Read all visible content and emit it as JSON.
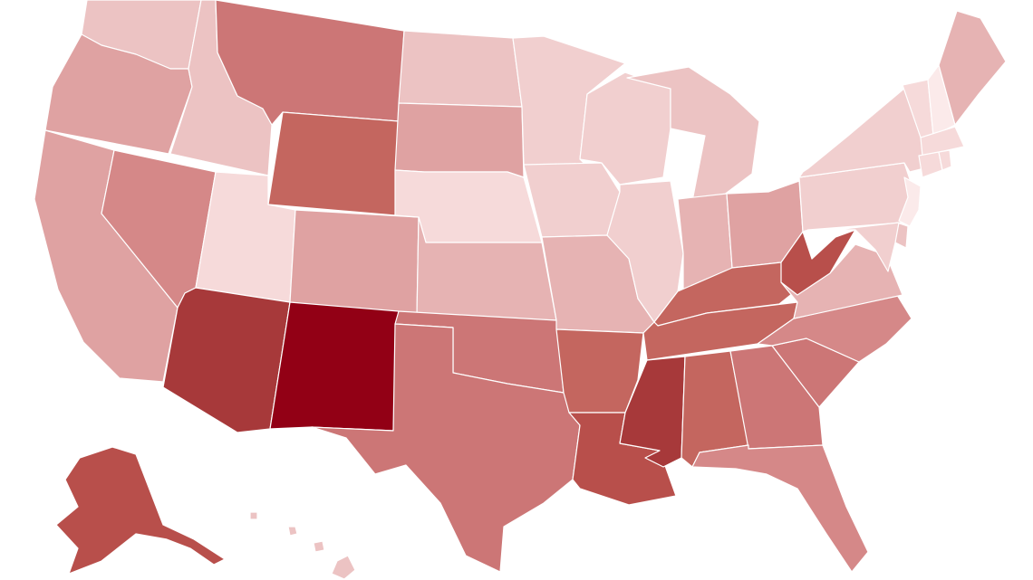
{
  "map": {
    "type": "choropleth",
    "region": "United States",
    "colors": {
      "background": "#ffffff",
      "border": "#ffffff",
      "scale": [
        "#fbeaea",
        "#f6dada",
        "#f1cfcf",
        "#ecc3c3",
        "#e6b3b3",
        "#dfa2a2",
        "#d58888",
        "#cc7676",
        "#c4665f",
        "#b84f4b",
        "#a7393a",
        "#920015"
      ]
    },
    "states": [
      {
        "code": "WA",
        "level": 3
      },
      {
        "code": "OR",
        "level": 5
      },
      {
        "code": "CA",
        "level": 5
      },
      {
        "code": "ID",
        "level": 3
      },
      {
        "code": "NV",
        "level": 6
      },
      {
        "code": "UT",
        "level": 1
      },
      {
        "code": "AZ",
        "level": 10
      },
      {
        "code": "MT",
        "level": 7
      },
      {
        "code": "WY",
        "level": 8
      },
      {
        "code": "CO",
        "level": 5
      },
      {
        "code": "NM",
        "level": 11
      },
      {
        "code": "ND",
        "level": 3
      },
      {
        "code": "SD",
        "level": 5
      },
      {
        "code": "NE",
        "level": 1
      },
      {
        "code": "KS",
        "level": 4
      },
      {
        "code": "OK",
        "level": 7
      },
      {
        "code": "TX",
        "level": 7
      },
      {
        "code": "MN",
        "level": 2
      },
      {
        "code": "IA",
        "level": 2
      },
      {
        "code": "MO",
        "level": 4
      },
      {
        "code": "AR",
        "level": 8
      },
      {
        "code": "LA",
        "level": 9
      },
      {
        "code": "WI",
        "level": 2
      },
      {
        "code": "IL",
        "level": 2
      },
      {
        "code": "MI",
        "level": 3
      },
      {
        "code": "IN",
        "level": 4
      },
      {
        "code": "OH",
        "level": 5
      },
      {
        "code": "KY",
        "level": 8
      },
      {
        "code": "TN",
        "level": 8
      },
      {
        "code": "MS",
        "level": 10
      },
      {
        "code": "AL",
        "level": 8
      },
      {
        "code": "GA",
        "level": 7
      },
      {
        "code": "FL",
        "level": 6
      },
      {
        "code": "SC",
        "level": 7
      },
      {
        "code": "NC",
        "level": 6
      },
      {
        "code": "VA",
        "level": 4
      },
      {
        "code": "WV",
        "level": 9
      },
      {
        "code": "PA",
        "level": 2
      },
      {
        "code": "NY",
        "level": 2
      },
      {
        "code": "VT",
        "level": 1
      },
      {
        "code": "NH",
        "level": 0
      },
      {
        "code": "ME",
        "level": 4
      },
      {
        "code": "MA",
        "level": 1
      },
      {
        "code": "CT",
        "level": 1
      },
      {
        "code": "RI",
        "level": 1
      },
      {
        "code": "NJ",
        "level": 0
      },
      {
        "code": "DE",
        "level": 3
      },
      {
        "code": "MD",
        "level": 2
      },
      {
        "code": "AK",
        "level": 9
      },
      {
        "code": "HI",
        "level": 3
      }
    ]
  }
}
